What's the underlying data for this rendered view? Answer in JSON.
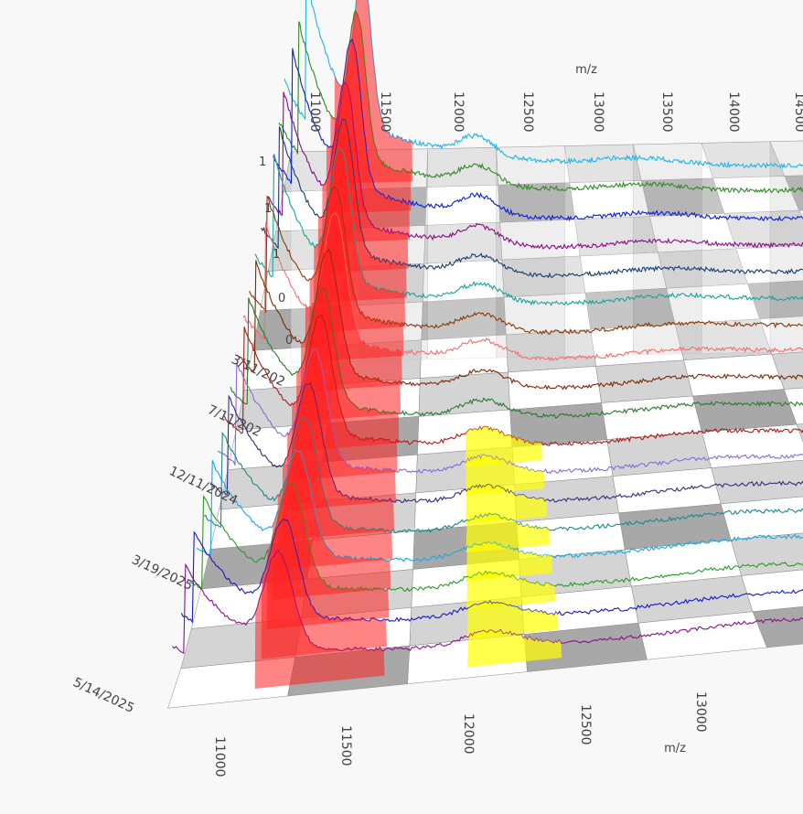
{
  "chart_data": {
    "type": "3d-waterfall-spectra",
    "x_axis_title": "m/z",
    "x_ticks": [
      "11000",
      "11500",
      "12000",
      "12500",
      "13000",
      "13500",
      "14000",
      "14500"
    ],
    "y_labels_shown": [
      "3/11/2024",
      "7/11/2024",
      "12/11/2024",
      "3/19/2025",
      "5/14/2025"
    ],
    "y_labels_printed": [
      "3/11/202",
      "7/11/202",
      "12/11/2024",
      "3/19/2025",
      "5/14/2025"
    ],
    "z_ticks": [
      "1",
      "1",
      "1",
      "0",
      "0"
    ],
    "bottom_axis_title": "m/z",
    "bottom_ticks": [
      "11000",
      "11500",
      "12000",
      "12500",
      "13000"
    ],
    "highlight_colors": {
      "red_region": "#ff2020",
      "yellow_region": "#ffff00"
    },
    "floor_colors": {
      "light": "#ffffff",
      "mid": "#d4d4d4",
      "dark": "#a8a8a8"
    },
    "series": [
      {
        "color": "#1fb4e8",
        "peak_mz": 11350,
        "peak": 1.0,
        "baseline": 0.02
      },
      {
        "color": "#2e8b22",
        "peak_mz": 11330,
        "peak": 0.95,
        "baseline": 0.03
      },
      {
        "color": "#0a1ed6",
        "peak_mz": 11320,
        "peak": 0.98,
        "baseline": 0.02
      },
      {
        "color": "#8a0a8a",
        "peak_mz": 11300,
        "peak": 0.93,
        "baseline": 0.02
      },
      {
        "color": "#123e6e",
        "peak_mz": 11310,
        "peak": 0.9,
        "baseline": 0.02
      },
      {
        "color": "#1aa39a",
        "peak_mz": 11310,
        "peak": 0.92,
        "baseline": 0.02
      },
      {
        "color": "#8b3a0a",
        "peak_mz": 11300,
        "peak": 0.88,
        "baseline": 0.02
      },
      {
        "color": "#f07070",
        "peak_mz": 11320,
        "peak": 0.9,
        "baseline": 0.03
      },
      {
        "color": "#7a2a0a",
        "peak_mz": 11300,
        "peak": 0.86,
        "baseline": 0.03
      },
      {
        "color": "#2a7a2a",
        "peak_mz": 11290,
        "peak": 0.84,
        "baseline": 0.03
      },
      {
        "color": "#b01818",
        "peak_mz": 11300,
        "peak": 0.85,
        "baseline": 0.03
      },
      {
        "color": "#8a6ad8",
        "peak_mz": 11290,
        "peak": 0.83,
        "baseline": 0.04
      },
      {
        "color": "#3a2a7a",
        "peak_mz": 11280,
        "peak": 0.82,
        "baseline": 0.04
      },
      {
        "color": "#1a8a8a",
        "peak_mz": 11280,
        "peak": 0.8,
        "baseline": 0.04
      },
      {
        "color": "#1aa8e0",
        "peak_mz": 11270,
        "peak": 0.79,
        "baseline": 0.05
      },
      {
        "color": "#2a9a2a",
        "peak_mz": 11260,
        "peak": 0.78,
        "baseline": 0.05
      },
      {
        "color": "#1818c8",
        "peak_mz": 11250,
        "peak": 0.76,
        "baseline": 0.05
      },
      {
        "color": "#8a108a",
        "peak_mz": 11250,
        "peak": 0.75,
        "baseline": 0.05
      }
    ]
  }
}
